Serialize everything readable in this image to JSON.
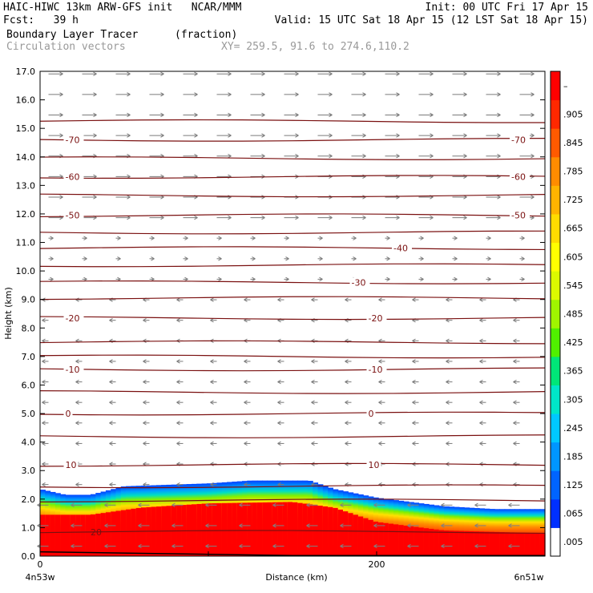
{
  "header": {
    "line1_left": "HAIC-HIWC 13km ARW-GFS init   NCAR/MMM",
    "line1_right": "Init: 00 UTC Fri 17 Apr 15",
    "line2_left": "Fcst:   39 h",
    "line2_right": "Valid: 15 UTC Sat 18 Apr 15 (12 LST Sat 18 Apr 15)",
    "line3_left": "Boundary Layer Tracer",
    "line3_units": "(fraction)",
    "line4_left": "Circulation vectors",
    "line4_xy": "XY= 259.5, 91.6 to 274.6,110.2"
  },
  "chart_data": {
    "type": "heatmap",
    "title": "Boundary Layer Tracer",
    "units": "(fraction)",
    "xlabel": "Distance (km)",
    "ylabel": "Height (km)",
    "xlim": [
      0,
      300
    ],
    "ylim": [
      0.0,
      17.0
    ],
    "x_ticks": [
      "0",
      "200"
    ],
    "x_end_labels": {
      "left": "4n53w",
      "right": "6n51w"
    },
    "y_ticks": [
      "0.0",
      "1.0",
      "2.0",
      "3.0",
      "4.0",
      "5.0",
      "6.0",
      "7.0",
      "8.0",
      "9.0",
      "10.0",
      "11.0",
      "12.0",
      "13.0",
      "14.0",
      "15.0",
      "16.0",
      "17.0"
    ],
    "colorbar": {
      "labels": [
        ".005",
        ".065",
        ".125",
        ".185",
        ".245",
        ".305",
        ".365",
        ".425",
        ".485",
        ".545",
        ".605",
        ".665",
        ".725",
        ".785",
        ".845",
        ".905",
        "–"
      ],
      "colors": [
        "#ffffff",
        "#0030ff",
        "#0064ff",
        "#0096ff",
        "#00c8ff",
        "#00e6c8",
        "#00e678",
        "#50f000",
        "#a0f500",
        "#dcfa00",
        "#ffff00",
        "#ffdc00",
        "#ffb400",
        "#ff8c00",
        "#ff5a00",
        "#ff2800",
        "#ff0000"
      ]
    },
    "tracer_top_km": [
      {
        "x": 0,
        "h": 2.35
      },
      {
        "x": 15,
        "h": 2.15
      },
      {
        "x": 30,
        "h": 2.15
      },
      {
        "x": 50,
        "h": 2.45
      },
      {
        "x": 100,
        "h": 2.55
      },
      {
        "x": 125,
        "h": 2.65
      },
      {
        "x": 160,
        "h": 2.65
      },
      {
        "x": 175,
        "h": 2.35
      },
      {
        "x": 200,
        "h": 2.05
      },
      {
        "x": 240,
        "h": 1.75
      },
      {
        "x": 270,
        "h": 1.65
      },
      {
        "x": 300,
        "h": 1.65
      }
    ],
    "tracer_red_top_km": [
      {
        "x": 0,
        "h": 1.45
      },
      {
        "x": 30,
        "h": 1.45
      },
      {
        "x": 60,
        "h": 1.7
      },
      {
        "x": 100,
        "h": 1.85
      },
      {
        "x": 150,
        "h": 1.9
      },
      {
        "x": 175,
        "h": 1.7
      },
      {
        "x": 200,
        "h": 1.2
      },
      {
        "x": 240,
        "h": 0.9
      },
      {
        "x": 300,
        "h": 0.8
      }
    ],
    "temperature_contours": [
      {
        "value": -70,
        "h": 14.6,
        "label": "-70"
      },
      {
        "value": -60,
        "h": 13.3,
        "label": "-60"
      },
      {
        "value": -50,
        "h": 11.95,
        "label": "-50"
      },
      {
        "value": -40,
        "h": 10.8,
        "label": "-40"
      },
      {
        "value": -30,
        "h": 9.6,
        "label": "-30"
      },
      {
        "value": -20,
        "h": 8.35,
        "label": "-20"
      },
      {
        "value": -10,
        "h": 6.55,
        "label": "-10"
      },
      {
        "value": 0,
        "h": 5.0,
        "label": "0"
      },
      {
        "value": 10,
        "h": 3.2,
        "label": "10"
      },
      {
        "value": 20,
        "h": 0.85,
        "label": "20"
      }
    ],
    "unlabeled_contours_km": [
      15.25,
      13.95,
      12.65,
      11.35,
      10.2,
      9.05,
      7.5,
      7.0,
      5.75,
      4.2,
      2.45,
      1.95
    ],
    "vectors": "circulation vectors: westerly (pointing right) above ~11 km, easterly (pointing left) below ~9.5 km"
  }
}
